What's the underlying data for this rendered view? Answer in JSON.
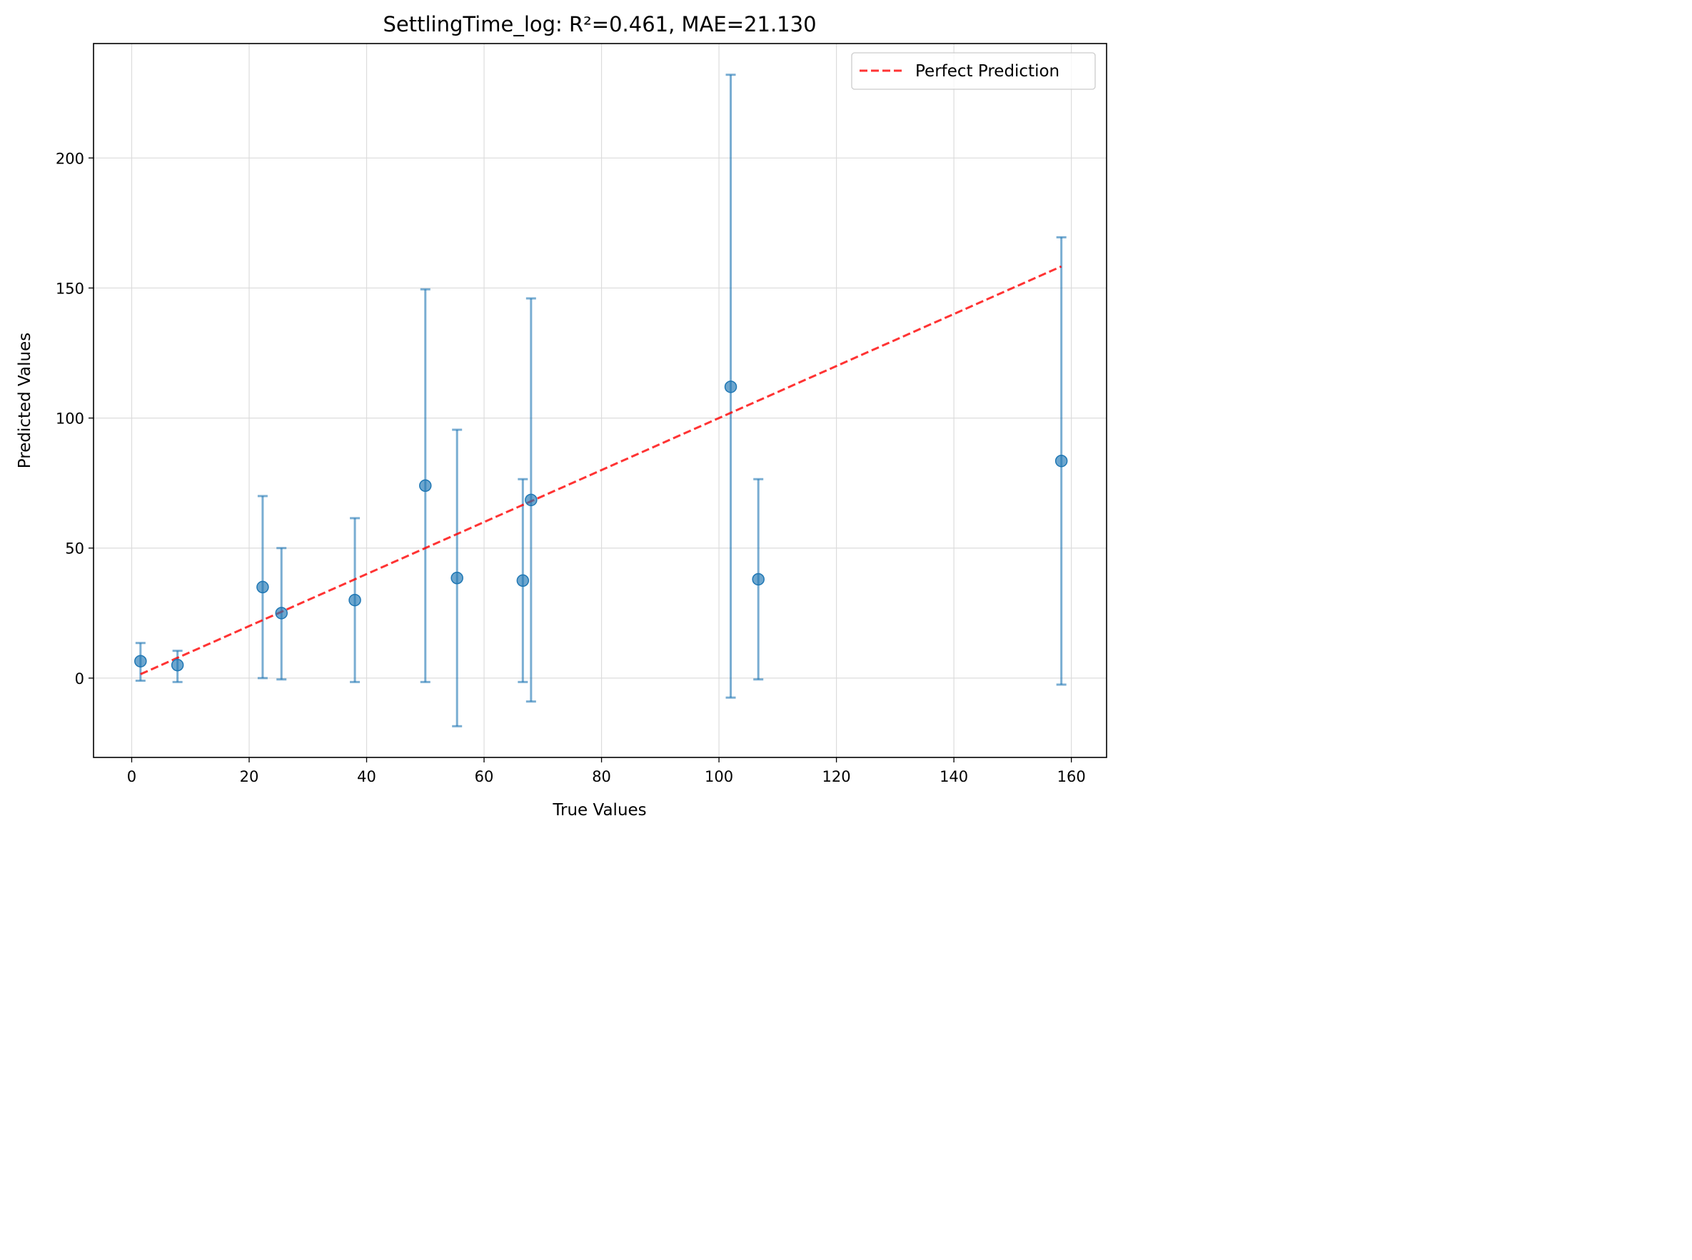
{
  "chart_data": {
    "type": "scatter",
    "title": "SettlingTime_log: R²=0.461, MAE=21.130",
    "xlabel": "True Values",
    "ylabel": "Predicted Values",
    "xlim": [
      -6.5,
      166
    ],
    "ylim": [
      -30.5,
      244
    ],
    "x_ticks": [
      0,
      20,
      40,
      60,
      80,
      100,
      120,
      140,
      160
    ],
    "y_ticks": [
      0,
      50,
      100,
      150,
      200
    ],
    "grid": true,
    "legend": {
      "position": "top-right",
      "entries": [
        "Perfect Prediction"
      ]
    },
    "colors": {
      "points": "#1f77b4",
      "perfect_line": "#ff0000",
      "grid": "#dcdcdc"
    },
    "points": [
      {
        "x": 1.5,
        "y": 6.5,
        "err_low": -1,
        "err_high": 13.5
      },
      {
        "x": 7.8,
        "y": 5.0,
        "err_low": -1.5,
        "err_high": 10.5
      },
      {
        "x": 22.3,
        "y": 35.0,
        "err_low": 0,
        "err_high": 70
      },
      {
        "x": 25.5,
        "y": 25.0,
        "err_low": -0.5,
        "err_high": 50
      },
      {
        "x": 38.0,
        "y": 30.0,
        "err_low": -1.5,
        "err_high": 61.5
      },
      {
        "x": 50.0,
        "y": 74.0,
        "err_low": -1.5,
        "err_high": 149.5
      },
      {
        "x": 55.4,
        "y": 38.5,
        "err_low": -18.5,
        "err_high": 95.5
      },
      {
        "x": 66.6,
        "y": 37.5,
        "err_low": -1.5,
        "err_high": 76.5
      },
      {
        "x": 68.0,
        "y": 68.5,
        "err_low": -9,
        "err_high": 146
      },
      {
        "x": 102.0,
        "y": 112.0,
        "err_low": -7.5,
        "err_high": 232
      },
      {
        "x": 106.7,
        "y": 38.0,
        "err_low": -0.5,
        "err_high": 76.5
      },
      {
        "x": 158.3,
        "y": 83.5,
        "err_low": -2.5,
        "err_high": 169.5
      }
    ],
    "perfect_line": {
      "name": "Perfect Prediction",
      "x": [
        1.5,
        158.3
      ],
      "y": [
        1.5,
        158.3
      ]
    }
  }
}
